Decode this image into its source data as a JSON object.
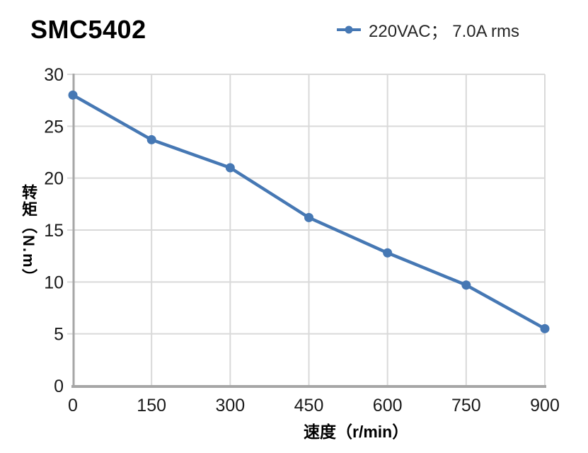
{
  "title": "SMC5402",
  "legend": {
    "label": "220VAC； 7.0A rms"
  },
  "chart_data": {
    "type": "line",
    "title": "SMC5402",
    "series": [
      {
        "name": "220VAC； 7.0A rms",
        "x": [
          0,
          150,
          300,
          450,
          600,
          750,
          900
        ],
        "values": [
          28,
          23.7,
          21,
          16.2,
          12.8,
          9.7,
          5.5
        ]
      }
    ],
    "xlabel": "速度（r/min）",
    "ylabel": "转矩（N.m）",
    "xlim": [
      0,
      900
    ],
    "ylim": [
      0,
      30
    ],
    "x_ticks": [
      0,
      150,
      300,
      450,
      600,
      750,
      900
    ],
    "y_ticks": [
      0,
      5,
      10,
      15,
      20,
      25,
      30
    ],
    "grid": true,
    "legend_position": "top-right",
    "line_color": "#4678B4",
    "grid_color": "#D9D9D9",
    "axis_color": "#A6A6A6"
  }
}
